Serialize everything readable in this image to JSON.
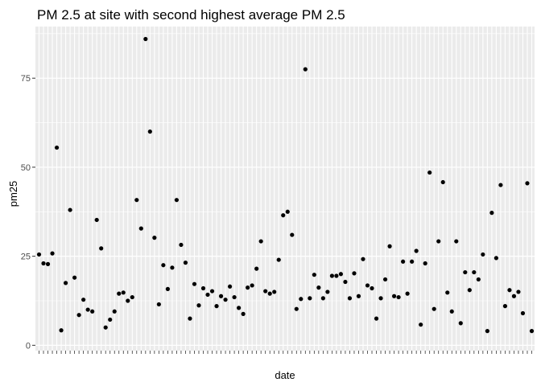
{
  "chart_data": {
    "type": "scatter",
    "title": "PM 2.5 at site with second highest average PM 2.5",
    "xlabel": "date",
    "ylabel": "pm25",
    "ylim": [
      -1.5,
      89.5
    ],
    "yticks": [
      0,
      25,
      50,
      75
    ],
    "ytick_labels": [
      "0",
      "25",
      "50",
      "75"
    ],
    "x_tick_labels_shown": false,
    "grid": true,
    "panel_background": "#EBEBEB",
    "grid_color": "#FFFFFF",
    "point_color": "#000000",
    "y": [
      25.5,
      23,
      22.8,
      25.8,
      55.5,
      4.2,
      17.5,
      38,
      19,
      8.5,
      12.8,
      10,
      9.5,
      35.2,
      27.2,
      5,
      7.2,
      9.5,
      14.5,
      14.8,
      12.5,
      13.5,
      40.8,
      32.8,
      86,
      60,
      30.2,
      11.5,
      22.5,
      15.8,
      21.8,
      40.8,
      28.2,
      23.2,
      7.5,
      17.2,
      11.2,
      16,
      14.2,
      15.2,
      11,
      13.8,
      12.8,
      16.5,
      13.5,
      10.5,
      8.8,
      16.2,
      16.8,
      21.5,
      29.2,
      15.2,
      14.5,
      15,
      24,
      36.5,
      37.5,
      31,
      10.2,
      13,
      77.5,
      13.2,
      19.8,
      16.2,
      13.2,
      15,
      19.5,
      19.5,
      20,
      17.8,
      13.2,
      20.2,
      13.8,
      24.2,
      16.8,
      16,
      7.5,
      13.2,
      18.5,
      27.8,
      13.8,
      13.5,
      23.5,
      14.5,
      23.5,
      26.5,
      5.8,
      23,
      48.5,
      10.2,
      29.2,
      45.8,
      14.8,
      9.5,
      29.2,
      6.2,
      20.5,
      15.5,
      20.5,
      18.5,
      25.5,
      4,
      37.2,
      24.5,
      45,
      11,
      15.5,
      13.8,
      15,
      9,
      45.5,
      4
    ]
  }
}
